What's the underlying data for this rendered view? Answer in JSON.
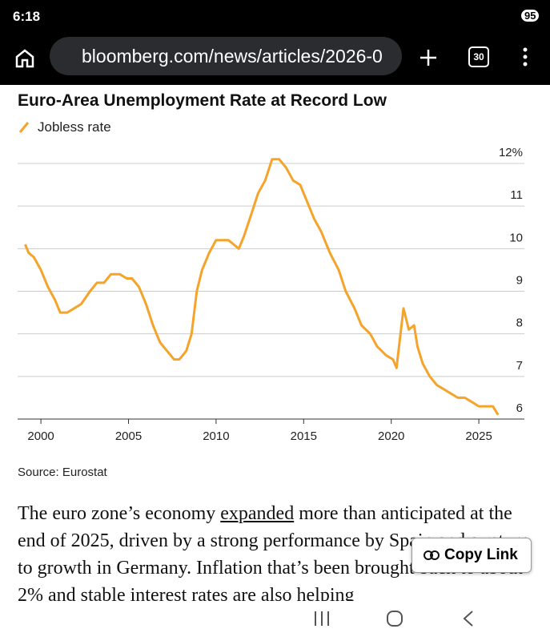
{
  "status_bar": {
    "time": "6:18",
    "battery": "95"
  },
  "browser": {
    "url": "bloomberg.com/news/articles/2026-0",
    "tab_count": "30"
  },
  "chart_data": {
    "type": "line",
    "title": "Euro-Area Unemployment Rate at Record Low",
    "x": [
      1999.1,
      1999.3,
      1999.6,
      2000.0,
      2000.4,
      2000.8,
      2001.1,
      2001.5,
      2001.9,
      2002.3,
      2002.8,
      2003.2,
      2003.6,
      2004.0,
      2004.5,
      2004.9,
      2005.2,
      2005.6,
      2006.0,
      2006.4,
      2006.8,
      2007.2,
      2007.6,
      2007.9,
      2008.3,
      2008.6,
      2008.9,
      2009.2,
      2009.6,
      2010.0,
      2010.4,
      2010.7,
      2011.0,
      2011.3,
      2011.6,
      2012.0,
      2012.4,
      2012.8,
      2013.2,
      2013.6,
      2014.0,
      2014.4,
      2014.8,
      2015.2,
      2015.6,
      2016.0,
      2016.5,
      2017.0,
      2017.4,
      2017.9,
      2018.3,
      2018.8,
      2019.2,
      2019.7,
      2020.1,
      2020.3,
      2020.7,
      2021.0,
      2021.3,
      2021.5,
      2021.8,
      2022.2,
      2022.6,
      2023.0,
      2023.4,
      2023.8,
      2024.2,
      2024.6,
      2025.0,
      2025.4,
      2025.8,
      2026.1
    ],
    "series": [
      {
        "name": "Jobless rate",
        "color": "#f5a32a",
        "values": [
          10.1,
          9.9,
          9.8,
          9.5,
          9.1,
          8.8,
          8.5,
          8.5,
          8.6,
          8.7,
          9.0,
          9.2,
          9.2,
          9.4,
          9.4,
          9.3,
          9.3,
          9.1,
          8.7,
          8.2,
          7.8,
          7.6,
          7.4,
          7.4,
          7.6,
          8.0,
          9.0,
          9.5,
          9.9,
          10.2,
          10.2,
          10.2,
          10.1,
          10.0,
          10.3,
          10.8,
          11.3,
          11.6,
          12.1,
          12.1,
          11.9,
          11.6,
          11.5,
          11.1,
          10.7,
          10.4,
          9.9,
          9.5,
          9.0,
          8.6,
          8.2,
          8.0,
          7.7,
          7.5,
          7.4,
          7.2,
          8.6,
          8.1,
          8.2,
          7.7,
          7.3,
          7.0,
          6.8,
          6.7,
          6.6,
          6.5,
          6.5,
          6.4,
          6.3,
          6.3,
          6.3,
          6.1
        ]
      }
    ],
    "xlim": [
      1998.67,
      2027.6
    ],
    "xticks": [
      2000,
      2005,
      2010,
      2015,
      2020,
      2025
    ],
    "ylim": [
      6,
      12
    ],
    "yticks": [
      6,
      7,
      8,
      9,
      10,
      11,
      {
        "value": 12,
        "label": "12%"
      }
    ],
    "grid": true,
    "source": "Source: Eurostat"
  },
  "paragraph": {
    "before": "The euro zone’s economy ",
    "link": "expanded",
    "after": " more than anticipated at the end of 2025, driven by a strong performance by Spain and a return to growth in Germany. Inflation that’s been brought back to about 2% and stable interest rates are also helping"
  },
  "copy_button": "Copy Link"
}
